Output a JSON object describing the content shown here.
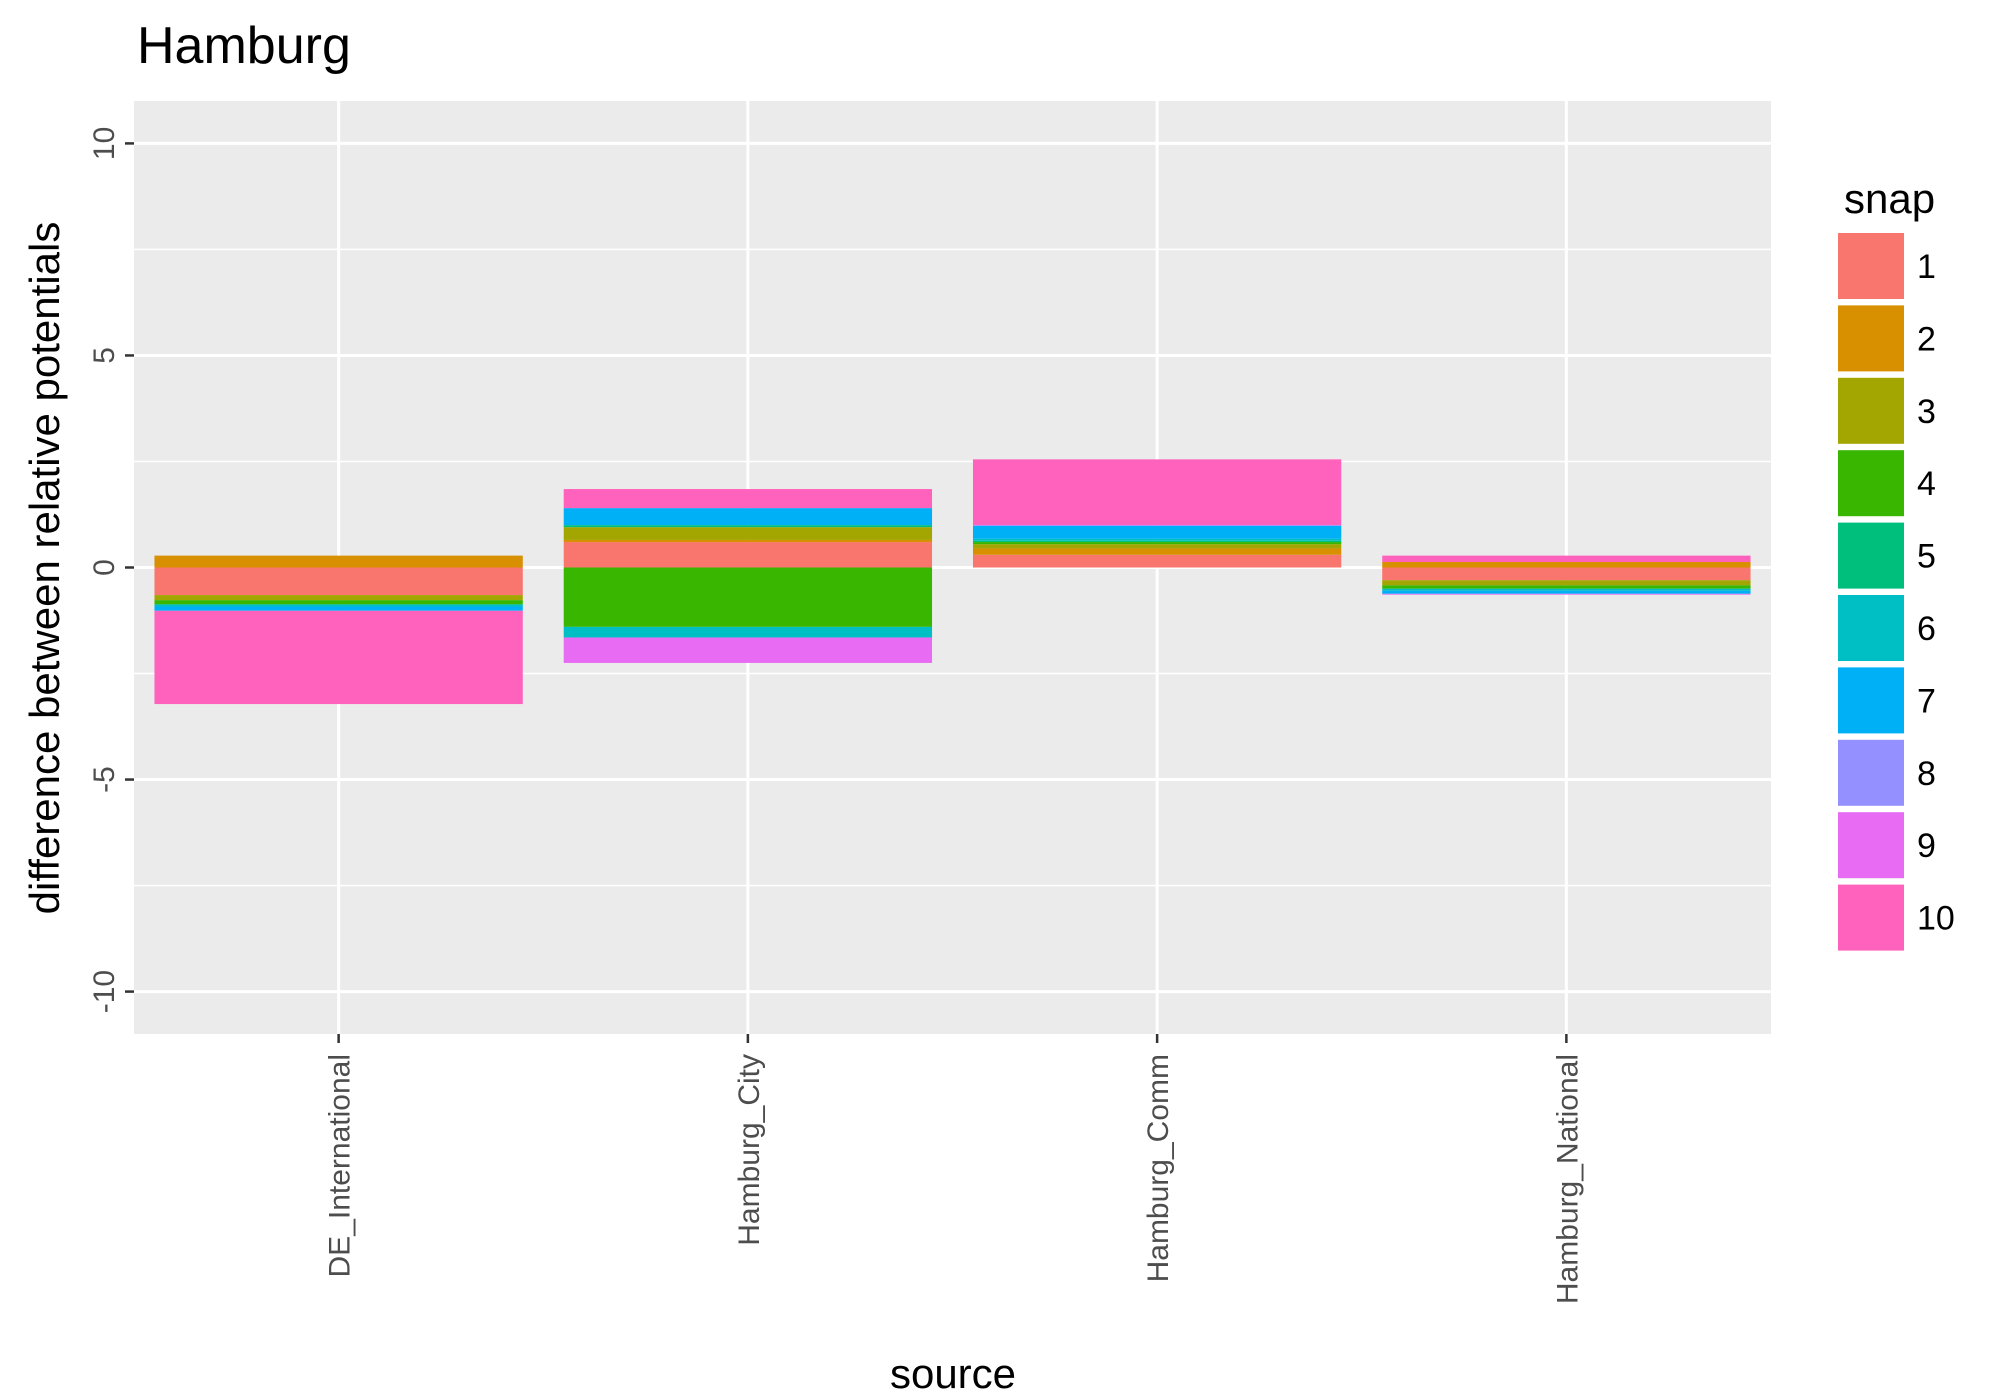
{
  "chart_data": {
    "type": "bar",
    "stacked": true,
    "title": "Hamburg",
    "xlabel": "source",
    "ylabel": "difference between relative potentials",
    "ylim": [
      -11,
      11
    ],
    "yticks": [
      -10,
      -5,
      0,
      5,
      10
    ],
    "grid": true,
    "categories": [
      "DE_International",
      "Hamburg_City",
      "Hamburg_Comm",
      "Hamburg_National"
    ],
    "legend": {
      "title": "snap",
      "position": "right"
    },
    "series": [
      {
        "name": "1",
        "color": "#F8766D",
        "values": [
          -0.65,
          0.6,
          0.3,
          -0.3
        ]
      },
      {
        "name": "2",
        "color": "#D89000",
        "values": [
          0.28,
          0.05,
          0.15,
          0.13
        ]
      },
      {
        "name": "3",
        "color": "#A3A500",
        "values": [
          -0.12,
          0.3,
          0.1,
          -0.12
        ]
      },
      {
        "name": "4",
        "color": "#39B600",
        "values": [
          -0.1,
          -1.4,
          0.05,
          -0.08
        ]
      },
      {
        "name": "5",
        "color": "#00BF7D",
        "values": [
          0,
          0.05,
          0.03,
          0
        ]
      },
      {
        "name": "6",
        "color": "#00BFC4",
        "values": [
          -0.05,
          -0.25,
          0.05,
          -0.05
        ]
      },
      {
        "name": "7",
        "color": "#00B0F6",
        "values": [
          -0.1,
          0.4,
          0.3,
          -0.07
        ]
      },
      {
        "name": "8",
        "color": "#9590FF",
        "values": [
          0,
          0,
          0.02,
          0
        ]
      },
      {
        "name": "9",
        "color": "#E76BF3",
        "values": [
          0,
          -0.6,
          0,
          -0.02
        ]
      },
      {
        "name": "10",
        "color": "#FF62BC",
        "values": [
          -2.2,
          0.45,
          1.55,
          0.15
        ]
      }
    ]
  }
}
